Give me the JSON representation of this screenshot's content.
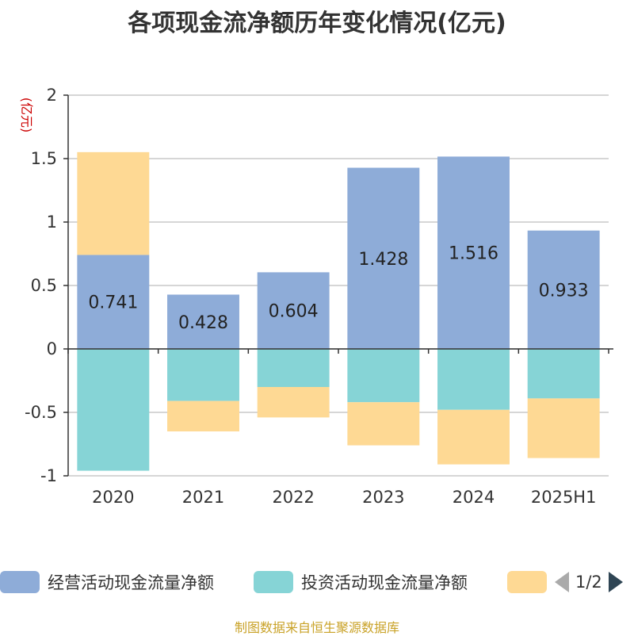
{
  "chart_data": {
    "type": "bar",
    "stacked": true,
    "title": "各项现金流净额历年变化情况(亿元)",
    "ylabel": "(亿元)",
    "ylim": [
      -1,
      2
    ],
    "yticks": [
      2,
      1.5,
      1,
      0.5,
      0,
      -0.5,
      -1
    ],
    "ytick_labels": [
      "2",
      "1.5",
      "1",
      "0.5",
      "0",
      "-0.5",
      "-1"
    ],
    "categories": [
      "2020",
      "2021",
      "2022",
      "2023",
      "2024",
      "2025H1"
    ],
    "grid": true,
    "series": [
      {
        "name": "经营活动现金流量净额",
        "color": "#8eacd8",
        "values": [
          0.741,
          0.428,
          0.604,
          1.428,
          1.516,
          0.933
        ],
        "labels": [
          "0.741",
          "0.428",
          "0.604",
          "1.428",
          "1.516",
          "0.933"
        ]
      },
      {
        "name": "投资活动现金流量净额",
        "color": "#86d4d6",
        "values": [
          -0.96,
          -0.41,
          -0.3,
          -0.42,
          -0.48,
          -0.39
        ]
      },
      {
        "name": "",
        "color": "#fed994",
        "values": [
          0.81,
          -0.24,
          -0.24,
          -0.34,
          -0.43,
          -0.47
        ]
      }
    ],
    "legend_position": "bottom",
    "legend_page": "1/2"
  },
  "source": "制图数据来自恒生聚源数据库"
}
